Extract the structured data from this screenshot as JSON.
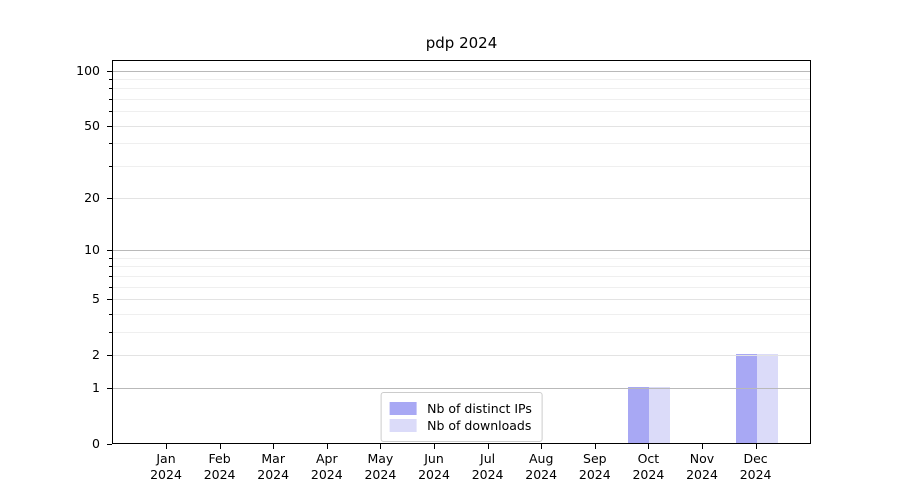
{
  "chart_data": {
    "type": "bar",
    "title": "pdp 2024",
    "x_axis": {
      "tick_months": [
        "Jan",
        "Feb",
        "Mar",
        "Apr",
        "May",
        "Jun",
        "Jul",
        "Aug",
        "Sep",
        "Oct",
        "Nov",
        "Dec"
      ],
      "tick_year": "2024"
    },
    "y_axis": {
      "scale": "log1p",
      "min": 0,
      "max": 114,
      "labeled_ticks": [
        0,
        1,
        2,
        5,
        10,
        20,
        50,
        100
      ],
      "decade_ticks": [
        1,
        10,
        100
      ],
      "minor_ticks": [
        3,
        4,
        6,
        7,
        8,
        9,
        30,
        40,
        60,
        70,
        80,
        90
      ]
    },
    "series": [
      {
        "name": "Nb of distinct IPs",
        "color": "#a8a8f4",
        "values": [
          0,
          0,
          0,
          0,
          0,
          0,
          0,
          0,
          0,
          1,
          0,
          2
        ]
      },
      {
        "name": "Nb of downloads",
        "color": "#dbdbf9",
        "values": [
          0,
          0,
          0,
          0,
          0,
          0,
          0,
          0,
          0,
          1,
          0,
          2
        ]
      }
    ],
    "legend": {
      "position": "lower center"
    },
    "grid": true,
    "colors": {
      "decade_grid": "#b9b9b9",
      "labeled_grid": "#e3e3e3",
      "minor_grid": "#efefef",
      "spine": "#000000",
      "text": "#000000",
      "legend_border": "#cccccc"
    }
  }
}
